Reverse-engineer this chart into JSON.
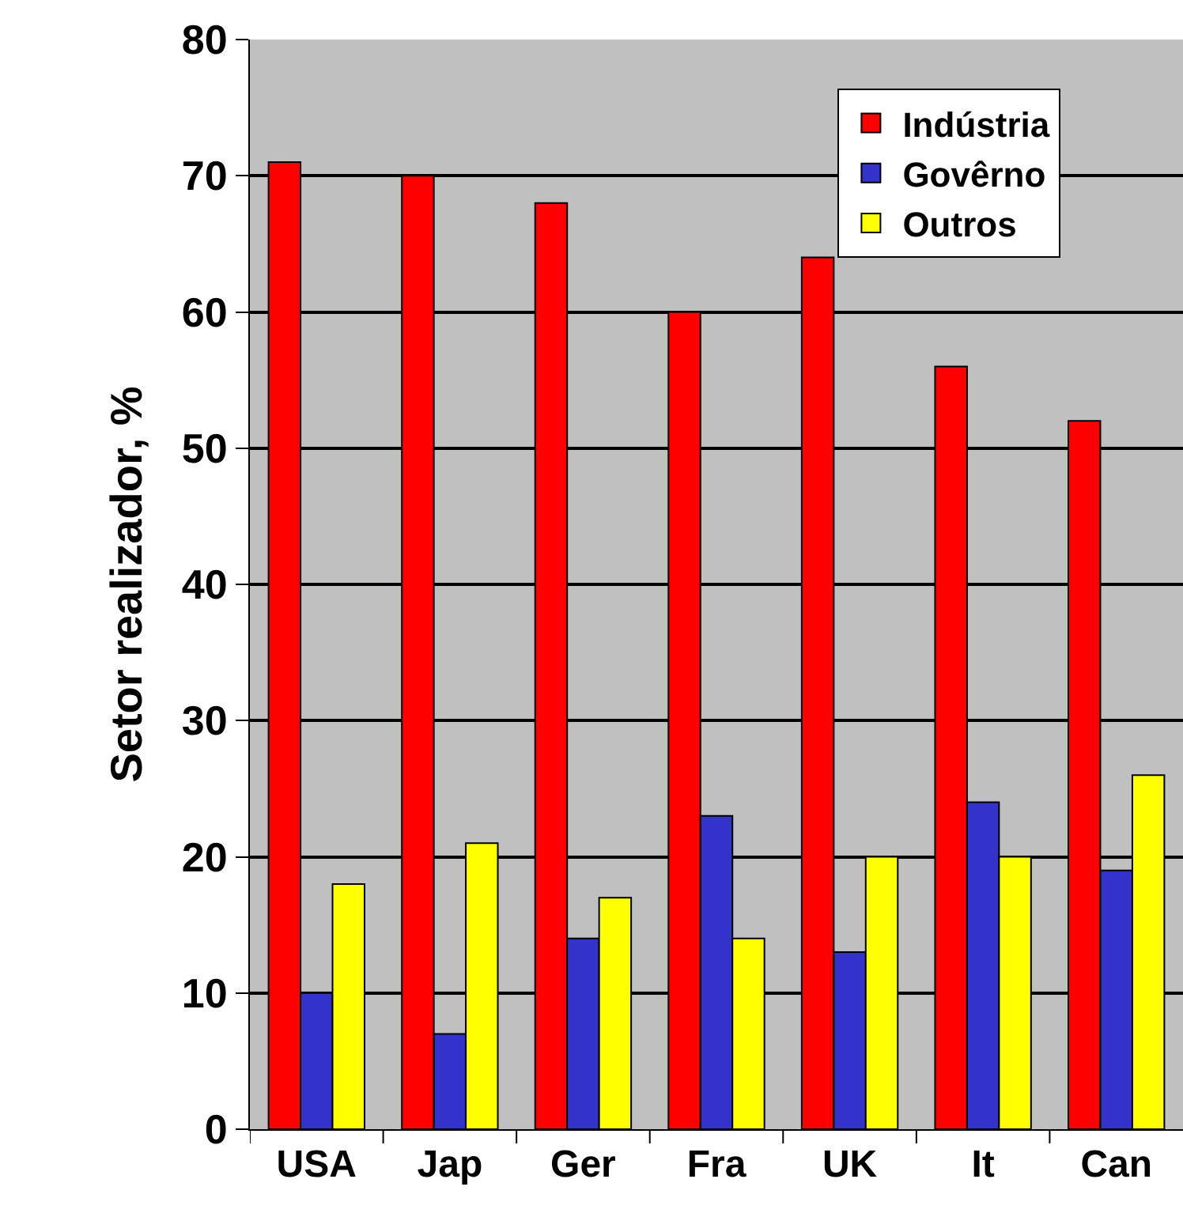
{
  "chart_data": {
    "type": "bar",
    "ylabel": "Setor realizador, %",
    "categories": [
      "USA",
      "Jap",
      "Ger",
      "Fra",
      "UK",
      "It",
      "Can"
    ],
    "series": [
      {
        "name": "Indústria",
        "color": "#ff0000",
        "values": [
          71,
          70,
          68,
          60,
          64,
          56,
          52
        ]
      },
      {
        "name": "Govêrno",
        "color": "#3333cc",
        "values": [
          10,
          7,
          14,
          23,
          13,
          24,
          19
        ]
      },
      {
        "name": "Outros",
        "color": "#ffff00",
        "values": [
          18,
          21,
          17,
          14,
          20,
          20,
          26
        ]
      }
    ],
    "ylim": [
      0,
      80
    ],
    "yticks": [
      0,
      10,
      20,
      30,
      40,
      50,
      60,
      70,
      80
    ],
    "grid": "y",
    "legend": "top right"
  }
}
